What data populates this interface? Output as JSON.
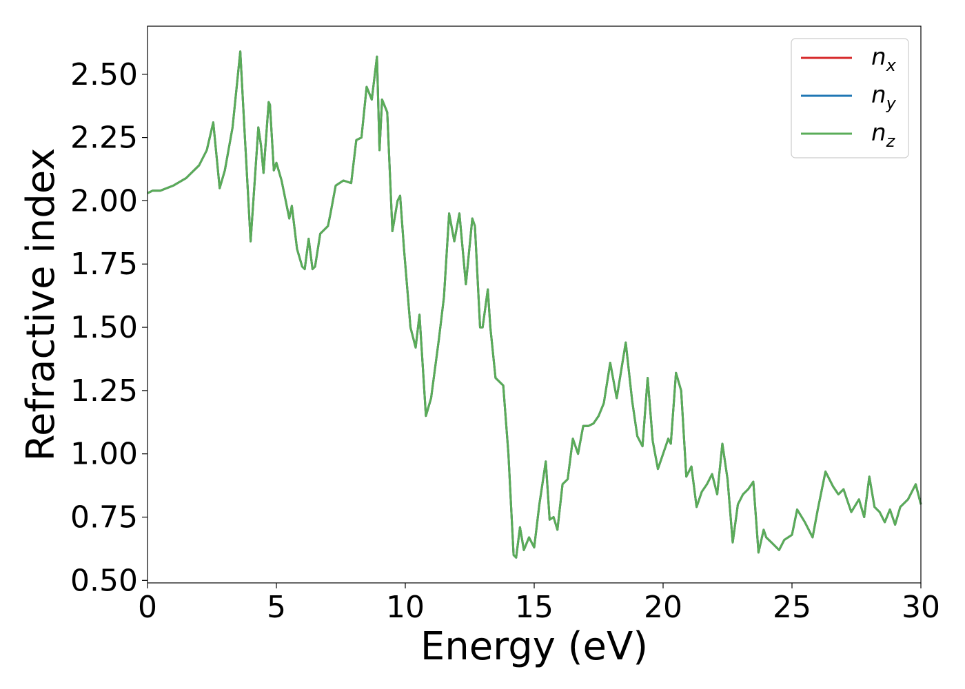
{
  "chart_data": {
    "type": "line",
    "title": "",
    "xlabel": "Energy (eV)",
    "ylabel": "Refractive index",
    "xlim": [
      0,
      30
    ],
    "ylim": [
      0.49,
      2.69
    ],
    "x_ticks": [
      0,
      5,
      10,
      15,
      20,
      25,
      30
    ],
    "x_tick_labels": [
      "0",
      "5",
      "10",
      "15",
      "20",
      "25",
      "30"
    ],
    "y_ticks": [
      0.5,
      0.75,
      1.0,
      1.25,
      1.5,
      1.75,
      2.0,
      2.25,
      2.5
    ],
    "y_tick_labels": [
      "0.50",
      "0.75",
      "1.00",
      "1.25",
      "1.50",
      "1.75",
      "2.00",
      "2.25",
      "2.50"
    ],
    "grid": false,
    "legend_position": "top-right",
    "series": [
      {
        "name": "n",
        "subscript": "x",
        "color": "#d62728",
        "x": [
          0,
          0.2,
          0.5,
          1,
          1.5,
          2,
          2.3,
          2.55,
          2.8,
          3.0,
          3.3,
          3.6,
          3.75,
          4.0,
          4.3,
          4.4,
          4.5,
          4.7,
          4.75,
          4.9,
          5.0,
          5.2,
          5.4,
          5.5,
          5.6,
          5.8,
          6.0,
          6.1,
          6.25,
          6.4,
          6.5,
          6.7,
          7.0,
          7.1,
          7.3,
          7.6,
          7.9,
          8.1,
          8.3,
          8.5,
          8.7,
          8.9,
          9.0,
          9.1,
          9.3,
          9.5,
          9.7,
          9.8,
          9.95,
          10.2,
          10.4,
          10.55,
          10.8,
          11.0,
          11.3,
          11.5,
          11.7,
          11.9,
          12.1,
          12.35,
          12.6,
          12.7,
          12.9,
          13.0,
          13.2,
          13.3,
          13.5,
          13.8,
          14.0,
          14.2,
          14.3,
          14.45,
          14.6,
          14.8,
          15.0,
          15.2,
          15.45,
          15.6,
          15.75,
          15.9,
          16.1,
          16.3,
          16.5,
          16.7,
          16.9,
          17.1,
          17.3,
          17.5,
          17.7,
          17.95,
          18.2,
          18.55,
          18.8,
          19.0,
          19.2,
          19.4,
          19.6,
          19.8,
          20.0,
          20.2,
          20.3,
          20.5,
          20.7,
          20.9,
          21.1,
          21.3,
          21.5,
          21.7,
          21.9,
          22.1,
          22.3,
          22.5,
          22.7,
          22.9,
          23.1,
          23.3,
          23.5,
          23.7,
          23.9,
          24.0,
          24.2,
          24.5,
          24.7,
          25.0,
          25.2,
          25.5,
          25.8,
          26.0,
          26.3,
          26.6,
          26.8,
          27.0,
          27.3,
          27.6,
          27.8,
          28.0,
          28.2,
          28.4,
          28.6,
          28.8,
          29.0,
          29.2,
          29.5,
          29.8,
          30.0
        ],
        "values": [
          2.03,
          2.04,
          2.04,
          2.06,
          2.09,
          2.14,
          2.2,
          2.31,
          2.05,
          2.12,
          2.29,
          2.59,
          2.3,
          1.84,
          2.29,
          2.22,
          2.11,
          2.39,
          2.38,
          2.12,
          2.15,
          2.08,
          1.98,
          1.93,
          1.98,
          1.81,
          1.74,
          1.73,
          1.85,
          1.73,
          1.74,
          1.87,
          1.9,
          1.95,
          2.06,
          2.08,
          2.07,
          2.24,
          2.25,
          2.45,
          2.4,
          2.57,
          2.2,
          2.4,
          2.35,
          1.88,
          2.0,
          2.02,
          1.81,
          1.5,
          1.42,
          1.55,
          1.15,
          1.22,
          1.45,
          1.62,
          1.95,
          1.84,
          1.95,
          1.67,
          1.93,
          1.9,
          1.5,
          1.5,
          1.65,
          1.5,
          1.3,
          1.27,
          1.0,
          0.6,
          0.59,
          0.71,
          0.62,
          0.67,
          0.63,
          0.8,
          0.97,
          0.74,
          0.75,
          0.7,
          0.88,
          0.9,
          1.06,
          1.0,
          1.11,
          1.11,
          1.12,
          1.15,
          1.2,
          1.36,
          1.22,
          1.44,
          1.21,
          1.07,
          1.03,
          1.3,
          1.05,
          0.94,
          1.0,
          1.06,
          1.04,
          1.32,
          1.25,
          0.91,
          0.95,
          0.79,
          0.85,
          0.88,
          0.92,
          0.84,
          1.04,
          0.9,
          0.65,
          0.8,
          0.84,
          0.86,
          0.89,
          0.61,
          0.7,
          0.67,
          0.65,
          0.62,
          0.66,
          0.68,
          0.78,
          0.73,
          0.67,
          0.78,
          0.93,
          0.87,
          0.84,
          0.86,
          0.77,
          0.82,
          0.75,
          0.91,
          0.79,
          0.77,
          0.73,
          0.78,
          0.72,
          0.79,
          0.82,
          0.88,
          0.8
        ]
      },
      {
        "name": "n",
        "subscript": "y",
        "color": "#1f77b4",
        "x": [
          0,
          0.2,
          0.5,
          1,
          1.5,
          2,
          2.3,
          2.55,
          2.8,
          3.0,
          3.3,
          3.6,
          3.75,
          4.0,
          4.3,
          4.4,
          4.5,
          4.7,
          4.75,
          4.9,
          5.0,
          5.2,
          5.4,
          5.5,
          5.6,
          5.8,
          6.0,
          6.1,
          6.25,
          6.4,
          6.5,
          6.7,
          7.0,
          7.1,
          7.3,
          7.6,
          7.9,
          8.1,
          8.3,
          8.5,
          8.7,
          8.9,
          9.0,
          9.1,
          9.3,
          9.5,
          9.7,
          9.8,
          9.95,
          10.2,
          10.4,
          10.55,
          10.8,
          11.0,
          11.3,
          11.5,
          11.7,
          11.9,
          12.1,
          12.35,
          12.6,
          12.7,
          12.9,
          13.0,
          13.2,
          13.3,
          13.5,
          13.8,
          14.0,
          14.2,
          14.3,
          14.45,
          14.6,
          14.8,
          15.0,
          15.2,
          15.45,
          15.6,
          15.75,
          15.9,
          16.1,
          16.3,
          16.5,
          16.7,
          16.9,
          17.1,
          17.3,
          17.5,
          17.7,
          17.95,
          18.2,
          18.55,
          18.8,
          19.0,
          19.2,
          19.4,
          19.6,
          19.8,
          20.0,
          20.2,
          20.3,
          20.5,
          20.7,
          20.9,
          21.1,
          21.3,
          21.5,
          21.7,
          21.9,
          22.1,
          22.3,
          22.5,
          22.7,
          22.9,
          23.1,
          23.3,
          23.5,
          23.7,
          23.9,
          24.0,
          24.2,
          24.5,
          24.7,
          25.0,
          25.2,
          25.5,
          25.8,
          26.0,
          26.3,
          26.6,
          26.8,
          27.0,
          27.3,
          27.6,
          27.8,
          28.0,
          28.2,
          28.4,
          28.6,
          28.8,
          29.0,
          29.2,
          29.5,
          29.8,
          30.0
        ],
        "values": [
          2.03,
          2.04,
          2.04,
          2.06,
          2.09,
          2.14,
          2.2,
          2.31,
          2.05,
          2.12,
          2.29,
          2.59,
          2.3,
          1.84,
          2.29,
          2.22,
          2.11,
          2.39,
          2.38,
          2.12,
          2.15,
          2.08,
          1.98,
          1.93,
          1.98,
          1.81,
          1.74,
          1.73,
          1.85,
          1.73,
          1.74,
          1.87,
          1.9,
          1.95,
          2.06,
          2.08,
          2.07,
          2.24,
          2.25,
          2.45,
          2.4,
          2.57,
          2.2,
          2.4,
          2.35,
          1.88,
          2.0,
          2.02,
          1.81,
          1.5,
          1.42,
          1.55,
          1.15,
          1.22,
          1.45,
          1.62,
          1.95,
          1.84,
          1.95,
          1.67,
          1.93,
          1.9,
          1.5,
          1.5,
          1.65,
          1.5,
          1.3,
          1.27,
          1.0,
          0.6,
          0.59,
          0.71,
          0.62,
          0.67,
          0.63,
          0.8,
          0.97,
          0.74,
          0.75,
          0.7,
          0.88,
          0.9,
          1.06,
          1.0,
          1.11,
          1.11,
          1.12,
          1.15,
          1.2,
          1.36,
          1.22,
          1.44,
          1.21,
          1.07,
          1.03,
          1.3,
          1.05,
          0.94,
          1.0,
          1.06,
          1.04,
          1.32,
          1.25,
          0.91,
          0.95,
          0.79,
          0.85,
          0.88,
          0.92,
          0.84,
          1.04,
          0.9,
          0.65,
          0.8,
          0.84,
          0.86,
          0.89,
          0.61,
          0.7,
          0.67,
          0.65,
          0.62,
          0.66,
          0.68,
          0.78,
          0.73,
          0.67,
          0.78,
          0.93,
          0.87,
          0.84,
          0.86,
          0.77,
          0.82,
          0.75,
          0.91,
          0.79,
          0.77,
          0.73,
          0.78,
          0.72,
          0.79,
          0.82,
          0.88,
          0.8
        ]
      },
      {
        "name": "n",
        "subscript": "z",
        "color": "#5aac58",
        "x": [
          0,
          0.2,
          0.5,
          1,
          1.5,
          2,
          2.3,
          2.55,
          2.8,
          3.0,
          3.3,
          3.6,
          3.75,
          4.0,
          4.3,
          4.4,
          4.5,
          4.7,
          4.75,
          4.9,
          5.0,
          5.2,
          5.4,
          5.5,
          5.6,
          5.8,
          6.0,
          6.1,
          6.25,
          6.4,
          6.5,
          6.7,
          7.0,
          7.1,
          7.3,
          7.6,
          7.9,
          8.1,
          8.3,
          8.5,
          8.7,
          8.9,
          9.0,
          9.1,
          9.3,
          9.5,
          9.7,
          9.8,
          9.95,
          10.2,
          10.4,
          10.55,
          10.8,
          11.0,
          11.3,
          11.5,
          11.7,
          11.9,
          12.1,
          12.35,
          12.6,
          12.7,
          12.9,
          13.0,
          13.2,
          13.3,
          13.5,
          13.8,
          14.0,
          14.2,
          14.3,
          14.45,
          14.6,
          14.8,
          15.0,
          15.2,
          15.45,
          15.6,
          15.75,
          15.9,
          16.1,
          16.3,
          16.5,
          16.7,
          16.9,
          17.1,
          17.3,
          17.5,
          17.7,
          17.95,
          18.2,
          18.55,
          18.8,
          19.0,
          19.2,
          19.4,
          19.6,
          19.8,
          20.0,
          20.2,
          20.3,
          20.5,
          20.7,
          20.9,
          21.1,
          21.3,
          21.5,
          21.7,
          21.9,
          22.1,
          22.3,
          22.5,
          22.7,
          22.9,
          23.1,
          23.3,
          23.5,
          23.7,
          23.9,
          24.0,
          24.2,
          24.5,
          24.7,
          25.0,
          25.2,
          25.5,
          25.8,
          26.0,
          26.3,
          26.6,
          26.8,
          27.0,
          27.3,
          27.6,
          27.8,
          28.0,
          28.2,
          28.4,
          28.6,
          28.8,
          29.0,
          29.2,
          29.5,
          29.8,
          30.0
        ],
        "values": [
          2.03,
          2.04,
          2.04,
          2.06,
          2.09,
          2.14,
          2.2,
          2.31,
          2.05,
          2.12,
          2.29,
          2.59,
          2.3,
          1.84,
          2.29,
          2.22,
          2.11,
          2.39,
          2.38,
          2.12,
          2.15,
          2.08,
          1.98,
          1.93,
          1.98,
          1.81,
          1.74,
          1.73,
          1.85,
          1.73,
          1.74,
          1.87,
          1.9,
          1.95,
          2.06,
          2.08,
          2.07,
          2.24,
          2.25,
          2.45,
          2.4,
          2.57,
          2.2,
          2.4,
          2.35,
          1.88,
          2.0,
          2.02,
          1.81,
          1.5,
          1.42,
          1.55,
          1.15,
          1.22,
          1.45,
          1.62,
          1.95,
          1.84,
          1.95,
          1.67,
          1.93,
          1.9,
          1.5,
          1.5,
          1.65,
          1.5,
          1.3,
          1.27,
          1.0,
          0.6,
          0.59,
          0.71,
          0.62,
          0.67,
          0.63,
          0.8,
          0.97,
          0.74,
          0.75,
          0.7,
          0.88,
          0.9,
          1.06,
          1.0,
          1.11,
          1.11,
          1.12,
          1.15,
          1.2,
          1.36,
          1.22,
          1.44,
          1.21,
          1.07,
          1.03,
          1.3,
          1.05,
          0.94,
          1.0,
          1.06,
          1.04,
          1.32,
          1.25,
          0.91,
          0.95,
          0.79,
          0.85,
          0.88,
          0.92,
          0.84,
          1.04,
          0.9,
          0.65,
          0.8,
          0.84,
          0.86,
          0.89,
          0.61,
          0.7,
          0.67,
          0.65,
          0.62,
          0.66,
          0.68,
          0.78,
          0.73,
          0.67,
          0.78,
          0.93,
          0.87,
          0.84,
          0.86,
          0.77,
          0.82,
          0.75,
          0.91,
          0.79,
          0.77,
          0.73,
          0.78,
          0.72,
          0.79,
          0.82,
          0.88,
          0.8
        ]
      }
    ]
  }
}
